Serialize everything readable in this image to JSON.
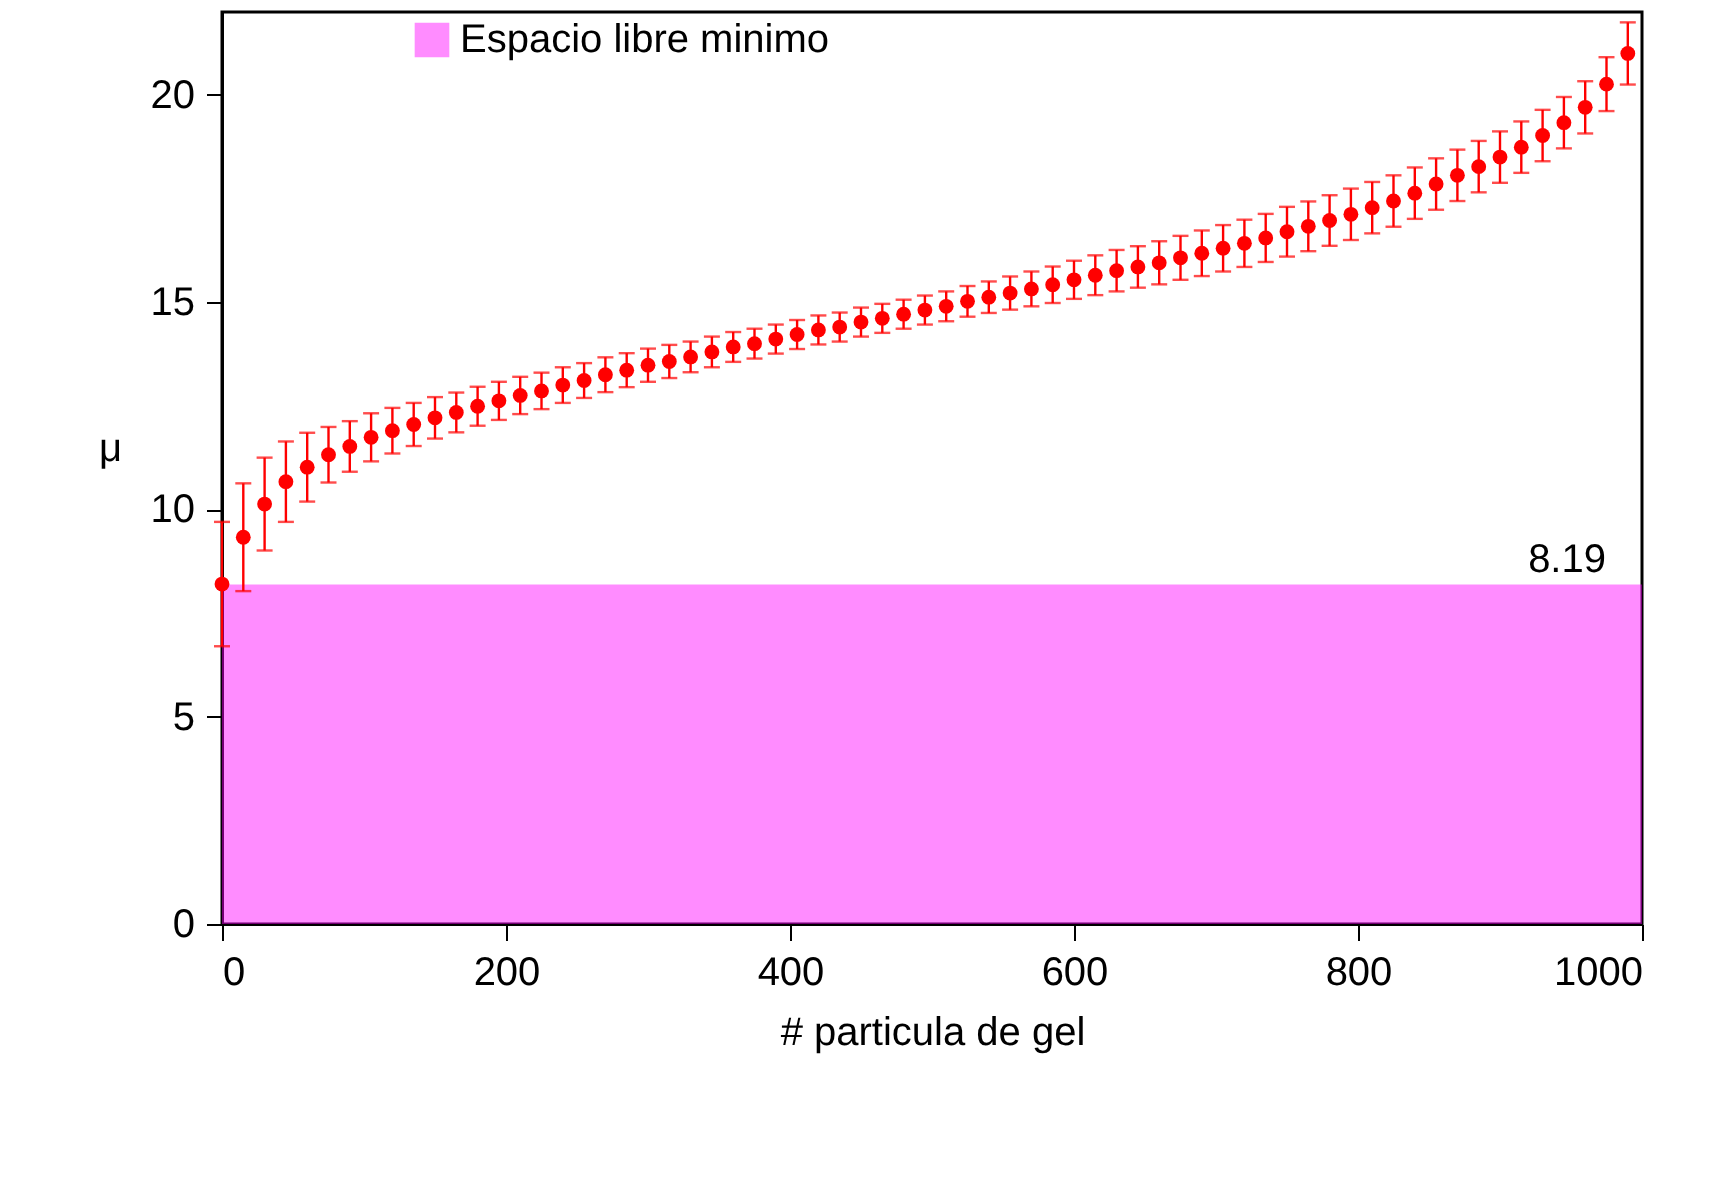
{
  "chart_data": {
    "type": "scatter",
    "xlabel": "# particula de gel",
    "ylabel": "μ",
    "x": [
      0,
      15,
      30,
      45,
      60,
      75,
      90,
      105,
      120,
      135,
      150,
      165,
      180,
      195,
      210,
      225,
      240,
      255,
      270,
      285,
      300,
      315,
      330,
      345,
      360,
      375,
      390,
      405,
      420,
      435,
      450,
      465,
      480,
      495,
      510,
      525,
      540,
      555,
      570,
      585,
      600,
      615,
      630,
      645,
      660,
      675,
      690,
      705,
      720,
      735,
      750,
      765,
      780,
      795,
      810,
      825,
      840,
      855,
      870,
      885,
      900,
      915,
      930,
      945,
      960,
      975,
      990
    ],
    "series": [
      {
        "color": "#ff0000",
        "values": [
          8.2,
          9.33,
          10.13,
          10.67,
          11.02,
          11.32,
          11.52,
          11.74,
          11.9,
          12.05,
          12.21,
          12.34,
          12.49,
          12.62,
          12.75,
          12.86,
          13.0,
          13.11,
          13.25,
          13.36,
          13.48,
          13.57,
          13.68,
          13.8,
          13.92,
          14.0,
          14.11,
          14.22,
          14.33,
          14.4,
          14.52,
          14.61,
          14.71,
          14.81,
          14.9,
          15.02,
          15.12,
          15.22,
          15.32,
          15.42,
          15.54,
          15.65,
          15.76,
          15.85,
          15.95,
          16.07,
          16.18,
          16.3,
          16.42,
          16.55,
          16.7,
          16.83,
          16.97,
          17.12,
          17.28,
          17.44,
          17.63,
          17.85,
          18.06,
          18.27,
          18.5,
          18.74,
          19.02,
          19.33,
          19.7,
          20.26,
          21.0
        ],
        "errors": [
          1.5,
          1.3,
          1.12,
          0.97,
          0.83,
          0.67,
          0.61,
          0.58,
          0.55,
          0.52,
          0.5,
          0.48,
          0.47,
          0.46,
          0.45,
          0.44,
          0.43,
          0.42,
          0.42,
          0.41,
          0.4,
          0.4,
          0.37,
          0.37,
          0.36,
          0.36,
          0.35,
          0.35,
          0.35,
          0.35,
          0.35,
          0.35,
          0.35,
          0.35,
          0.36,
          0.37,
          0.38,
          0.4,
          0.42,
          0.44,
          0.46,
          0.48,
          0.5,
          0.5,
          0.52,
          0.53,
          0.55,
          0.56,
          0.57,
          0.58,
          0.6,
          0.6,
          0.61,
          0.62,
          0.62,
          0.62,
          0.62,
          0.62,
          0.62,
          0.62,
          0.62,
          0.62,
          0.62,
          0.62,
          0.63,
          0.65,
          0.75
        ]
      }
    ],
    "xlim": [
      0,
      1000
    ],
    "xticks": [
      0,
      200,
      400,
      600,
      800,
      1000
    ],
    "ylim": [
      0,
      22
    ],
    "yticks": [
      0,
      5,
      10,
      15,
      20
    ],
    "bands": [
      {
        "axis": "y",
        "from": 0,
        "to": 8.19,
        "label": "Espacio libre minimo",
        "color": "#ff00ff"
      }
    ],
    "annotations": [
      {
        "text": "8.19",
        "x": 1000,
        "y": 8.19
      }
    ],
    "marker": "circle",
    "legend": "top",
    "grid": false
  }
}
